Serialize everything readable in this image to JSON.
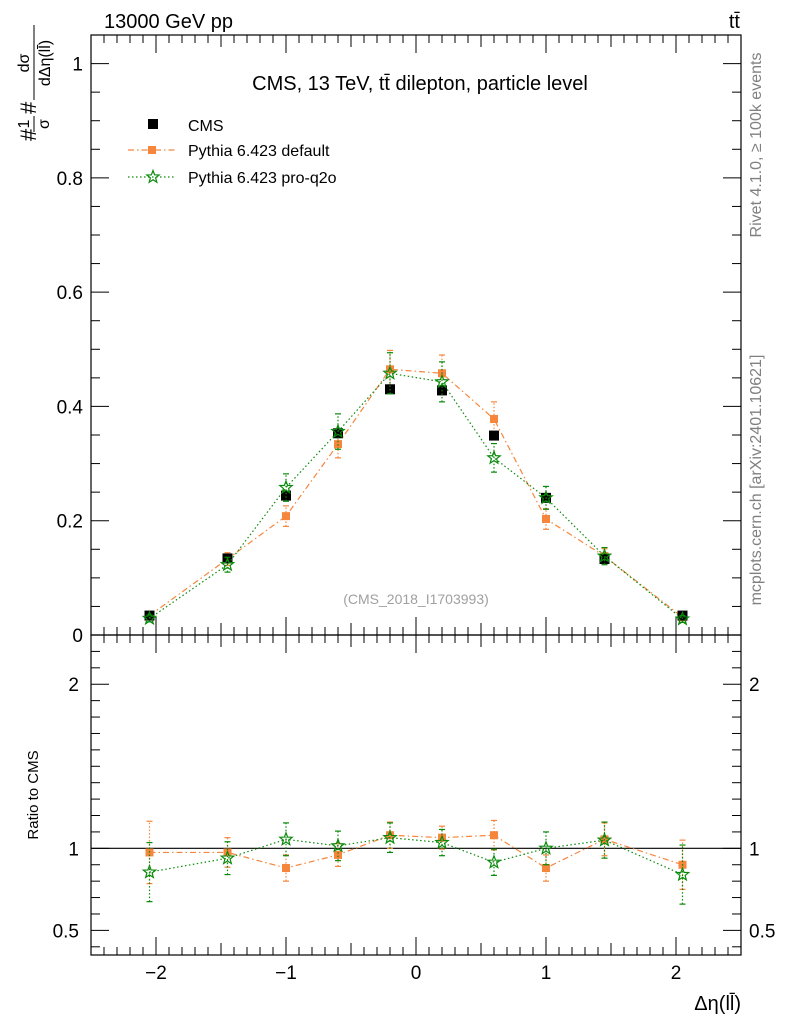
{
  "header": {
    "energy_label": "13000 GeV pp",
    "process_label": "tt̄",
    "rivet_label": "Rivet 4.1.0, ≥ 100k events",
    "source_label": "mcplots.cern.ch [arXiv:2401.10621]"
  },
  "chart_data": [
    {
      "type": "scatter",
      "title": "CMS, 13 TeV, tt̄ dilepton, particle level",
      "watermark": "(CMS_2018_I1703993)",
      "ylabel_parts": {
        "hash1": "#",
        "one": "1",
        "sigma": "σ",
        "hash2": "#",
        "dsigma": "dσ",
        "denom": "dΔη(ll̄)"
      },
      "xlabel": "Δη(ll̄)",
      "xlim": [
        -2.5,
        2.5
      ],
      "ylim": [
        0,
        1.05
      ],
      "x_ticks": [
        -2,
        -1,
        0,
        1,
        2
      ],
      "x_tick_labels": [
        "−2",
        "−1",
        "0",
        "1",
        "2"
      ],
      "y_ticks": [
        0,
        0.2,
        0.4,
        0.6,
        0.8,
        1
      ],
      "y_tick_labels": [
        "0",
        "0.2",
        "0.4",
        "0.6",
        "0.8",
        "1"
      ],
      "legend_position": "top-left",
      "x": [
        -2.05,
        -1.45,
        -1.0,
        -0.6,
        -0.2,
        0.2,
        0.6,
        1.0,
        1.45,
        2.05
      ],
      "series": [
        {
          "name": "CMS",
          "color": "#000000",
          "marker": "square",
          "line": "none",
          "values": [
            0.034,
            0.134,
            0.244,
            0.353,
            0.43,
            0.428,
            0.349,
            0.24,
            0.133,
            0.034
          ],
          "errors": [
            0.003,
            0.006,
            0.006,
            0.007,
            0.007,
            0.007,
            0.007,
            0.006,
            0.006,
            0.003
          ]
        },
        {
          "name": "Pythia 6.423 default",
          "color": "#f5863c",
          "marker": "square",
          "line": "dashdot",
          "values": [
            0.034,
            0.133,
            0.208,
            0.334,
            0.465,
            0.458,
            0.378,
            0.203,
            0.138,
            0.031
          ],
          "errors": [
            0.005,
            0.011,
            0.018,
            0.024,
            0.033,
            0.032,
            0.03,
            0.018,
            0.013,
            0.005
          ]
        },
        {
          "name": "Pythia 6.423 pro-q2o",
          "color": "#0a8a0a",
          "marker": "star",
          "line": "dotted",
          "values": [
            0.029,
            0.123,
            0.258,
            0.356,
            0.458,
            0.443,
            0.31,
            0.24,
            0.138,
            0.028
          ],
          "errors": [
            0.006,
            0.013,
            0.024,
            0.031,
            0.036,
            0.035,
            0.025,
            0.02,
            0.015,
            0.006
          ]
        }
      ]
    },
    {
      "type": "scatter",
      "title": "",
      "ylabel": "Ratio to CMS",
      "xlim": [
        -2.5,
        2.5
      ],
      "ylim": [
        0.35,
        2.3
      ],
      "ratio_labels": [
        "2",
        "1",
        "0.5"
      ],
      "ratio_label_values": [
        2,
        1,
        0.5
      ],
      "reference_line": 1,
      "x": [
        -2.05,
        -1.45,
        -1.0,
        -0.6,
        -0.2,
        0.2,
        0.6,
        1.0,
        1.45,
        2.05
      ],
      "series": [
        {
          "name": "Pythia 6.423 default",
          "color": "#f5863c",
          "marker": "square",
          "line": "dashdot",
          "values": [
            0.975,
            0.975,
            0.88,
            0.96,
            1.08,
            1.065,
            1.08,
            0.88,
            1.055,
            0.9
          ],
          "errors": [
            0.19,
            0.09,
            0.08,
            0.07,
            0.08,
            0.07,
            0.09,
            0.08,
            0.1,
            0.15
          ]
        },
        {
          "name": "Pythia 6.423 pro-q2o",
          "color": "#0a8a0a",
          "marker": "star",
          "line": "dotted",
          "values": [
            0.855,
            0.94,
            1.055,
            1.015,
            1.065,
            1.035,
            0.915,
            1.0,
            1.05,
            0.84
          ],
          "errors": [
            0.18,
            0.1,
            0.1,
            0.09,
            0.09,
            0.08,
            0.08,
            0.1,
            0.11,
            0.18
          ]
        }
      ]
    }
  ]
}
